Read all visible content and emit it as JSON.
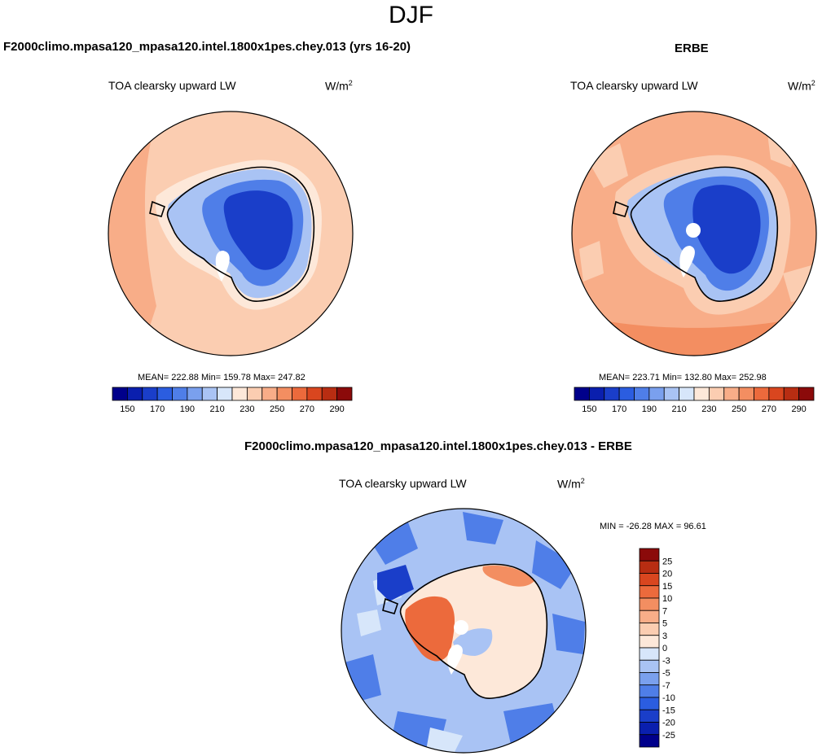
{
  "page_title": "DJF",
  "panels": {
    "model": {
      "title": "F2000climo.mpasa120_mpasa120.intel.1800x1pes.chey.013 (yrs 16-20)",
      "variable": "TOA clearsky upward LW",
      "units_base": "W/m",
      "units_exp": "2",
      "stats": "MEAN= 222.88  Min= 159.78  Max= 247.82"
    },
    "obs": {
      "title": "ERBE",
      "variable": "TOA clearsky upward LW",
      "units_base": "W/m",
      "units_exp": "2",
      "stats": "MEAN= 223.71  Min= 132.80  Max= 252.98"
    },
    "diff": {
      "title": "F2000climo.mpasa120_mpasa120.intel.1800x1pes.chey.013 - ERBE",
      "variable": "TOA clearsky upward LW",
      "units_base": "W/m",
      "units_exp": "2",
      "stats": "MIN = -26.28 MAX =  96.61"
    }
  },
  "colors": {
    "abs_scale": [
      "#00008b",
      "#0a1fae",
      "#1a3ec9",
      "#2b5de0",
      "#4f7ee8",
      "#7aa0ee",
      "#a9c3f4",
      "#d7e6fa",
      "#fde8d9",
      "#fbcdb1",
      "#f8ad88",
      "#f38e61",
      "#ec6a3c",
      "#d9461f",
      "#b82d12",
      "#8b0a0a"
    ],
    "diff_scale": [
      "#00008b",
      "#0a1fae",
      "#1a3ec9",
      "#2b5de0",
      "#4f7ee8",
      "#7aa0ee",
      "#a9c3f4",
      "#d7e6fa",
      "#fde8d9",
      "#fbcdb1",
      "#f8ad88",
      "#f38e61",
      "#ec6a3c",
      "#d9461f",
      "#b82d12",
      "#8b0a0a"
    ]
  },
  "chart_data": [
    {
      "type": "heatmap",
      "projection": "south polar stereographic",
      "title": "F2000climo.mpasa120_mpasa120.intel.1800x1pes.chey.013 (yrs 16-20)",
      "variable": "TOA clearsky upward LW",
      "units": "W/m2",
      "colorbar_levels": [
        "150",
        "170",
        "190",
        "210",
        "230",
        "250",
        "270",
        "290"
      ],
      "mean": 222.88,
      "min": 159.78,
      "max": 247.82
    },
    {
      "type": "heatmap",
      "projection": "south polar stereographic",
      "title": "ERBE",
      "variable": "TOA clearsky upward LW",
      "units": "W/m2",
      "colorbar_levels": [
        "150",
        "170",
        "190",
        "210",
        "230",
        "250",
        "270",
        "290"
      ],
      "mean": 223.71,
      "min": 132.8,
      "max": 252.98
    },
    {
      "type": "heatmap",
      "projection": "south polar stereographic",
      "title": "F2000climo.mpasa120_mpasa120.intel.1800x1pes.chey.013 - ERBE",
      "variable": "TOA clearsky upward LW",
      "units": "W/m2",
      "colorbar_levels": [
        "25",
        "20",
        "15",
        "10",
        "7",
        "5",
        "3",
        "0",
        "-3",
        "-5",
        "-7",
        "-10",
        "-15",
        "-20",
        "-25"
      ],
      "min": -26.28,
      "max": 96.61
    }
  ]
}
